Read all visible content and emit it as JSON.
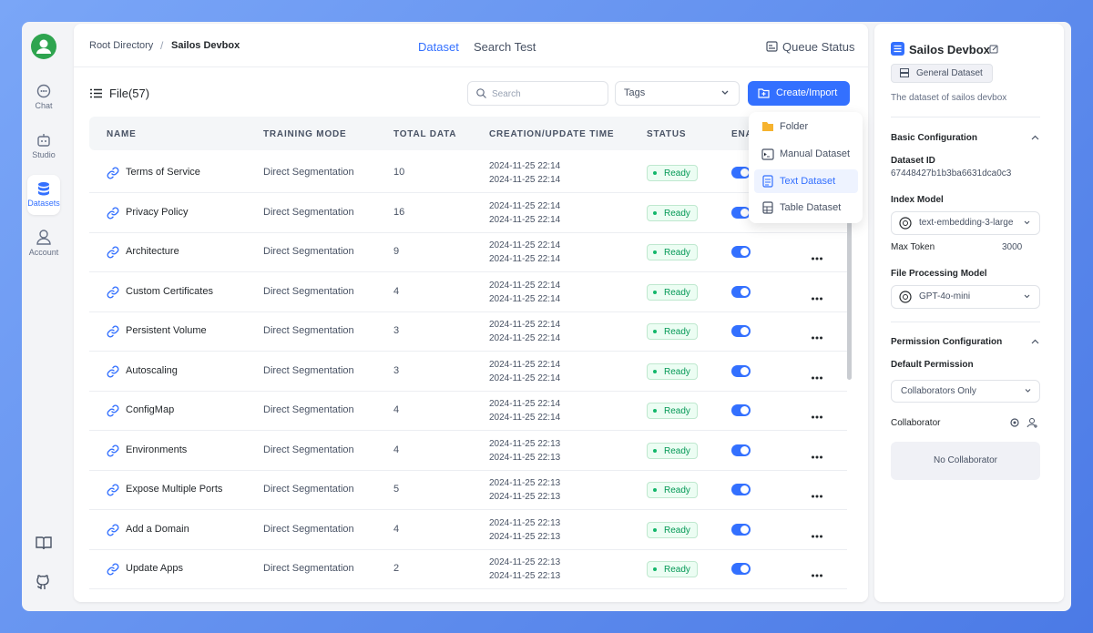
{
  "sidebar": {
    "nav": [
      "Chat",
      "Studio",
      "Datasets",
      "Account"
    ]
  },
  "header": {
    "breadcrumb": [
      "Root Directory",
      "Sailos Devbox"
    ],
    "tabs": [
      "Dataset",
      "Search Test"
    ],
    "queue_status": "Queue Status"
  },
  "toolbar": {
    "file_count": "File(57)",
    "search_placeholder": "Search",
    "tags": "Tags",
    "create_button": "Create/Import"
  },
  "dropdown": [
    "Folder",
    "Manual Dataset",
    "Text Dataset",
    "Table Dataset"
  ],
  "table": {
    "columns": [
      "NAME",
      "TRAINING MODE",
      "TOTAL DATA",
      "CREATION/UPDATE TIME",
      "STATUS",
      "ENABLE"
    ],
    "rows": [
      {
        "name": "Terms of Service",
        "mode": "Direct Segmentation",
        "total": 10,
        "created": "2024-11-25 22:14",
        "updated": "2024-11-25 22:14",
        "status": "Ready"
      },
      {
        "name": "Privacy Policy",
        "mode": "Direct Segmentation",
        "total": 16,
        "created": "2024-11-25 22:14",
        "updated": "2024-11-25 22:14",
        "status": "Ready"
      },
      {
        "name": "Architecture",
        "mode": "Direct Segmentation",
        "total": 9,
        "created": "2024-11-25 22:14",
        "updated": "2024-11-25 22:14",
        "status": "Ready"
      },
      {
        "name": "Custom Certificates",
        "mode": "Direct Segmentation",
        "total": 4,
        "created": "2024-11-25 22:14",
        "updated": "2024-11-25 22:14",
        "status": "Ready"
      },
      {
        "name": "Persistent Volume",
        "mode": "Direct Segmentation",
        "total": 3,
        "created": "2024-11-25 22:14",
        "updated": "2024-11-25 22:14",
        "status": "Ready"
      },
      {
        "name": "Autoscaling",
        "mode": "Direct Segmentation",
        "total": 3,
        "created": "2024-11-25 22:14",
        "updated": "2024-11-25 22:14",
        "status": "Ready"
      },
      {
        "name": "ConfigMap",
        "mode": "Direct Segmentation",
        "total": 4,
        "created": "2024-11-25 22:14",
        "updated": "2024-11-25 22:14",
        "status": "Ready"
      },
      {
        "name": "Environments",
        "mode": "Direct Segmentation",
        "total": 4,
        "created": "2024-11-25 22:13",
        "updated": "2024-11-25 22:13",
        "status": "Ready"
      },
      {
        "name": "Expose Multiple Ports",
        "mode": "Direct Segmentation",
        "total": 5,
        "created": "2024-11-25 22:13",
        "updated": "2024-11-25 22:13",
        "status": "Ready"
      },
      {
        "name": "Add a Domain",
        "mode": "Direct Segmentation",
        "total": 4,
        "created": "2024-11-25 22:13",
        "updated": "2024-11-25 22:13",
        "status": "Ready"
      },
      {
        "name": "Update Apps",
        "mode": "Direct Segmentation",
        "total": 2,
        "created": "2024-11-25 22:13",
        "updated": "2024-11-25 22:13",
        "status": "Ready"
      }
    ]
  },
  "panel": {
    "title": "Sailos Devbox",
    "type_tag": "General Dataset",
    "description": "The dataset of sailos devbox",
    "basic_section": "Basic Configuration",
    "dataset_id_label": "Dataset ID",
    "dataset_id": "67448427b1b3ba6631dca0c3",
    "index_model_label": "Index Model",
    "index_model": "text-embedding-3-large",
    "max_token_label": "Max Token",
    "max_token": 3000,
    "file_model_label": "File Processing Model",
    "file_model": "GPT-4o-mini",
    "permission_section": "Permission Configuration",
    "default_permission_label": "Default Permission",
    "default_permission": "Collaborators Only",
    "collaborator_label": "Collaborator",
    "no_collaborator": "No Collaborator"
  }
}
